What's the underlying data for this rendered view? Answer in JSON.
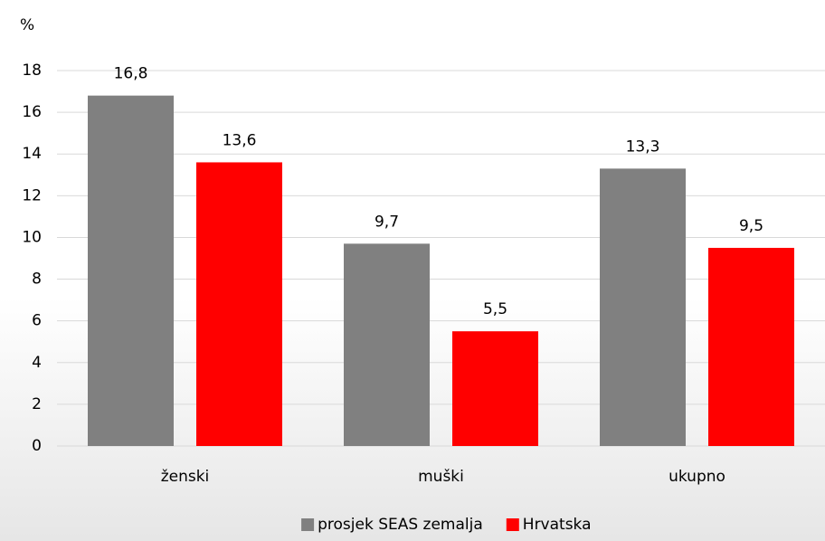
{
  "chart_data": {
    "type": "bar",
    "y_unit_label": "%",
    "categories": [
      "ženski",
      "muški",
      "ukupno"
    ],
    "series": [
      {
        "name": "prosjek SEAS zemalja",
        "color": "#808080",
        "values": [
          16.8,
          9.7,
          13.3
        ],
        "value_labels": [
          "16,8",
          "9,7",
          "13,3"
        ]
      },
      {
        "name": "Hrvatska",
        "color": "#ff0000",
        "values": [
          13.6,
          5.5,
          9.5
        ],
        "value_labels": [
          "13,6",
          "5,5",
          "9,5"
        ]
      }
    ],
    "ylim": [
      0,
      18
    ],
    "yticks": [
      0,
      2,
      4,
      6,
      8,
      10,
      12,
      14,
      16,
      18
    ],
    "grid": true,
    "legend": "bottom"
  }
}
